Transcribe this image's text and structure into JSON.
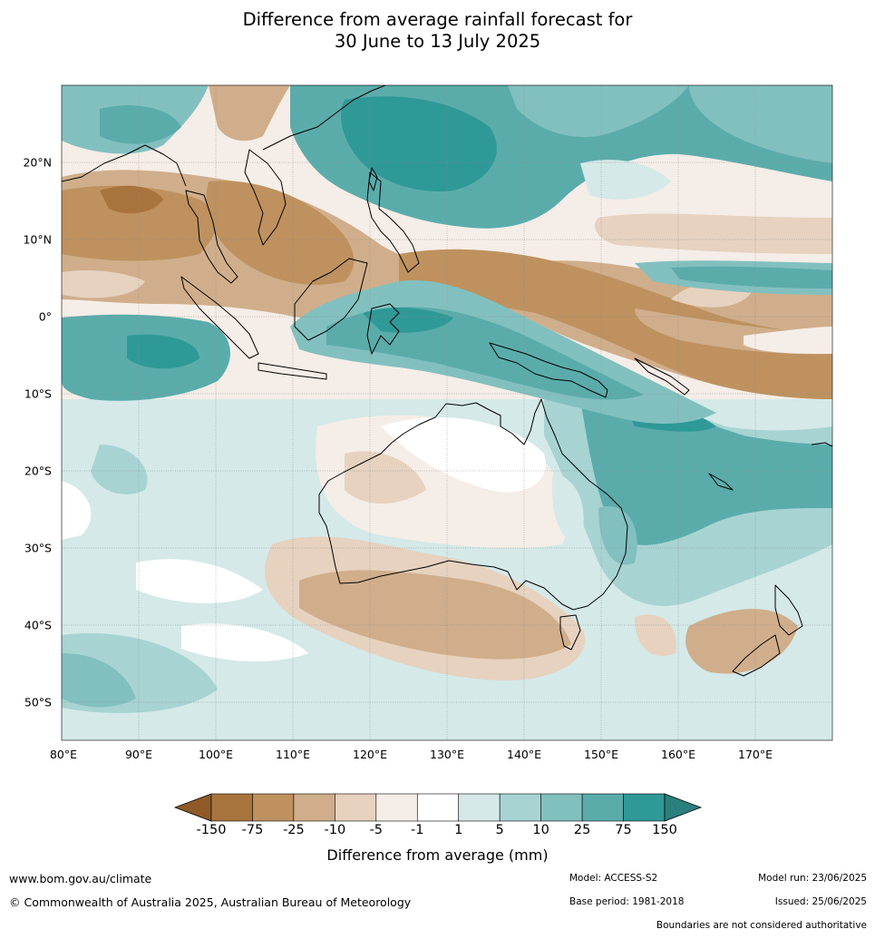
{
  "title": {
    "line1": "Difference from average rainfall forecast for",
    "line2": "30 June to 13 July 2025"
  },
  "map": {
    "lon_range": [
      80,
      180
    ],
    "lat_range": [
      -55,
      30
    ],
    "lat_labels": [
      {
        "value": 20,
        "text": "20°N"
      },
      {
        "value": 10,
        "text": "10°N"
      },
      {
        "value": 0,
        "text": "0°"
      },
      {
        "value": -10,
        "text": "10°S"
      },
      {
        "value": -20,
        "text": "20°S"
      },
      {
        "value": -30,
        "text": "30°S"
      },
      {
        "value": -40,
        "text": "40°S"
      },
      {
        "value": -50,
        "text": "50°S"
      }
    ],
    "lon_labels": [
      {
        "value": 80,
        "text": "80°E"
      },
      {
        "value": 90,
        "text": "90°E"
      },
      {
        "value": 100,
        "text": "100°E"
      },
      {
        "value": 110,
        "text": "110°E"
      },
      {
        "value": 120,
        "text": "120°E"
      },
      {
        "value": 130,
        "text": "130°E"
      },
      {
        "value": 140,
        "text": "140°E"
      },
      {
        "value": 150,
        "text": "150°E"
      },
      {
        "value": 160,
        "text": "160°E"
      },
      {
        "value": 170,
        "text": "170°E"
      }
    ]
  },
  "colorbar": {
    "title": "Difference from average (mm)",
    "colors": [
      "#a8743d",
      "#be915f",
      "#d0ae8b",
      "#e6d2bf",
      "#f5ede7",
      "#ffffff",
      "#d4e9e8",
      "#a8d3d3",
      "#82c0bf",
      "#5aacab",
      "#2f9997"
    ],
    "end_low": "#8f5a28",
    "end_high": "#2b7f7d",
    "labels": [
      "-150",
      "-75",
      "-25",
      "-10",
      "-5",
      "-1",
      "1",
      "5",
      "10",
      "25",
      "75",
      "150"
    ]
  },
  "footer": {
    "website": "www.bom.gov.au/climate",
    "copyright": "© Commonwealth of Australia 2025, Australian Bureau of Meteorology",
    "model": "Model: ACCESS-S2",
    "base_period": "Base period: 1981-2018",
    "model_run": "Model run: 23/06/2025",
    "issued": "Issued: 25/06/2025",
    "disclaimer": "Boundaries are not considered authoritative"
  }
}
